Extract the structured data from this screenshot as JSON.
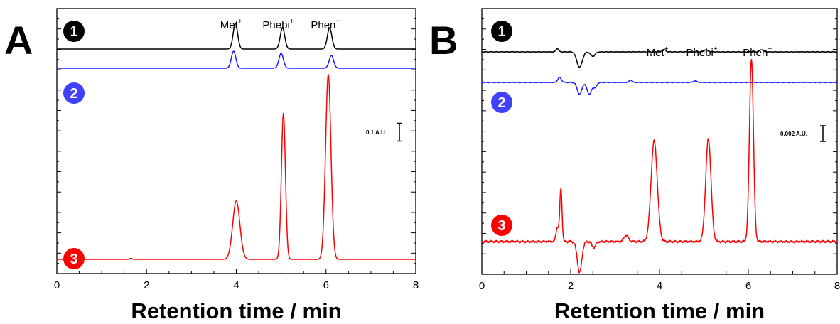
{
  "chart_data": [
    {
      "panel": "A",
      "type": "line",
      "xlabel": "Retention time / min",
      "xlim": [
        0,
        8
      ],
      "xticks": [
        "0",
        "2",
        "4",
        "6",
        "8"
      ],
      "peak_labels": [
        {
          "text": "Met",
          "sup": "+",
          "x": 3.98
        },
        {
          "text": "Phebi",
          "sup": "+",
          "x": 5.03
        },
        {
          "text": "Phen",
          "sup": "+",
          "x": 6.08
        }
      ],
      "scale_bar": {
        "label": "0.1 A.U.",
        "value": 0.1
      },
      "series": [
        {
          "name": "1",
          "color": "#000000",
          "baseline": 0.0,
          "peaks": [
            [
              3.98,
              0.06,
              0.05
            ],
            [
              5.03,
              0.05,
              0.05
            ],
            [
              6.08,
              0.05,
              0.05
            ]
          ]
        },
        {
          "name": "2",
          "color": "#1a1aff",
          "baseline": -0.1,
          "peaks": [
            [
              3.94,
              0.04,
              0.05
            ],
            [
              5.0,
              0.035,
              0.05
            ],
            [
              6.12,
              0.03,
              0.05
            ]
          ]
        },
        {
          "name": "3",
          "color": "#ff0000",
          "baseline": -1.0,
          "peaks": [
            [
              1.65,
              0.005,
              0.03
            ],
            [
              4.0,
              0.3,
              0.08
            ],
            [
              5.05,
              0.75,
              0.045
            ],
            [
              6.05,
              0.95,
              0.06
            ]
          ]
        }
      ]
    },
    {
      "panel": "B",
      "type": "line",
      "xlabel": "Retention time / min",
      "xlim": [
        0,
        8
      ],
      "xticks": [
        "0",
        "2",
        "4",
        "6",
        "8"
      ],
      "peak_labels": [
        {
          "text": "Met",
          "sup": "+",
          "x": 4.05
        },
        {
          "text": "Phebi",
          "sup": "+",
          "x": 5.05
        },
        {
          "text": "Phen",
          "sup": "+",
          "x": 6.3
        }
      ],
      "scale_bar": {
        "label": "0.002 A.U.",
        "value": 0.002
      },
      "series": [
        {
          "name": "1",
          "color": "#000000",
          "baseline": 0.0,
          "peaks": [
            [
              1.7,
              0.0003,
              0.03
            ],
            [
              2.2,
              -0.0014,
              0.06
            ],
            [
              2.5,
              -0.0004,
              0.05
            ],
            [
              4.1,
              0.0002,
              0.04
            ],
            [
              5.05,
              0.0002,
              0.04
            ],
            [
              6.3,
              0.0002,
              0.04
            ]
          ]
        },
        {
          "name": "2",
          "color": "#1a1aff",
          "baseline": -0.0016,
          "peaks": [
            [
              1.75,
              0.0005,
              0.04
            ],
            [
              2.2,
              -0.0012,
              0.05
            ],
            [
              2.42,
              -0.0012,
              0.05
            ],
            [
              2.55,
              -0.0005,
              0.04
            ],
            [
              3.35,
              0.00025,
              0.03
            ],
            [
              4.8,
              0.00015,
              0.04
            ]
          ]
        },
        {
          "name": "3",
          "color": "#ff0000",
          "baseline": -0.0095,
          "peaks": [
            [
              1.7,
              0.0007,
              0.03
            ],
            [
              1.78,
              0.0026,
              0.025
            ],
            [
              2.2,
              -0.0015,
              0.05
            ],
            [
              2.52,
              -0.0003,
              0.04
            ],
            [
              3.25,
              0.0003,
              0.05
            ],
            [
              3.88,
              0.0049,
              0.07
            ],
            [
              5.1,
              0.005,
              0.06
            ],
            [
              6.07,
              0.0089,
              0.045
            ]
          ]
        }
      ]
    }
  ]
}
